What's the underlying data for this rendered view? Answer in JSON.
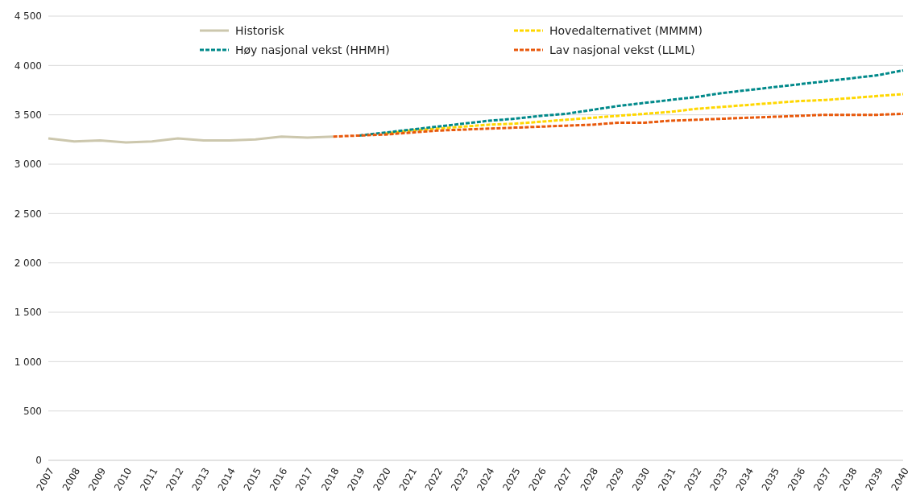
{
  "chart_data": {
    "type": "line",
    "categories": [
      "2007",
      "2008",
      "2009",
      "2010",
      "2011",
      "2012",
      "2013",
      "2014",
      "2015",
      "2016",
      "2017",
      "2018",
      "2019",
      "2020",
      "2021",
      "2022",
      "2023",
      "2024",
      "2025",
      "2026",
      "2027",
      "2028",
      "2029",
      "2030",
      "2031",
      "2032",
      "2033",
      "2034",
      "2035",
      "2036",
      "2037",
      "2038",
      "2039",
      "2040"
    ],
    "series": [
      {
        "name": "Historisk",
        "color": "#ccc7ad",
        "line_style": "solid",
        "values": [
          3260,
          3230,
          3240,
          3220,
          3230,
          3260,
          3240,
          3240,
          3250,
          3280,
          3270,
          3280,
          null,
          null,
          null,
          null,
          null,
          null,
          null,
          null,
          null,
          null,
          null,
          null,
          null,
          null,
          null,
          null,
          null,
          null,
          null,
          null,
          null,
          null
        ]
      },
      {
        "name": "Hovedalternativet (MMMM)",
        "color": "#ffd700",
        "line_style": "dashed",
        "values": [
          null,
          null,
          null,
          null,
          null,
          null,
          null,
          null,
          null,
          null,
          null,
          null,
          null,
          3310,
          3340,
          3360,
          3380,
          3400,
          3410,
          3430,
          3450,
          3470,
          3490,
          3510,
          3530,
          3560,
          3580,
          3600,
          3620,
          3640,
          3650,
          3670,
          3690,
          3710
        ]
      },
      {
        "name": "Høy nasjonal vekst (HHMH)",
        "color": "#00898a",
        "line_style": "dashed",
        "values": [
          null,
          null,
          null,
          null,
          null,
          null,
          null,
          null,
          null,
          null,
          null,
          null,
          3290,
          3320,
          3350,
          3380,
          3410,
          3440,
          3460,
          3490,
          3510,
          3550,
          3590,
          3620,
          3650,
          3680,
          3720,
          3750,
          3780,
          3810,
          3840,
          3870,
          3900,
          3950
        ]
      },
      {
        "name": "Lav nasjonal vekst (LLML)",
        "color": "#e8590c",
        "line_style": "dashed",
        "values": [
          null,
          null,
          null,
          null,
          null,
          null,
          null,
          null,
          null,
          null,
          null,
          3280,
          3290,
          3300,
          3320,
          3340,
          3350,
          3360,
          3370,
          3380,
          3390,
          3400,
          3420,
          3420,
          3440,
          3450,
          3460,
          3470,
          3480,
          3490,
          3500,
          3500,
          3500,
          3510
        ]
      }
    ],
    "ylim": [
      0,
      4500
    ],
    "yticks": [
      0,
      {
        "value": 500,
        "label": "500"
      },
      {
        "value": 1000,
        "label": "1 000"
      },
      {
        "value": 1500,
        "label": "1 500"
      },
      {
        "value": 2000,
        "label": "2 000"
      },
      {
        "value": 2500,
        "label": "2 500"
      },
      {
        "value": 3000,
        "label": "3 000"
      },
      {
        "value": 3500,
        "label": "3 500"
      },
      {
        "value": 4000,
        "label": "4 000"
      },
      {
        "value": 4500,
        "label": "4 500"
      }
    ],
    "grid": "y",
    "legend": "top",
    "marker": "none"
  }
}
